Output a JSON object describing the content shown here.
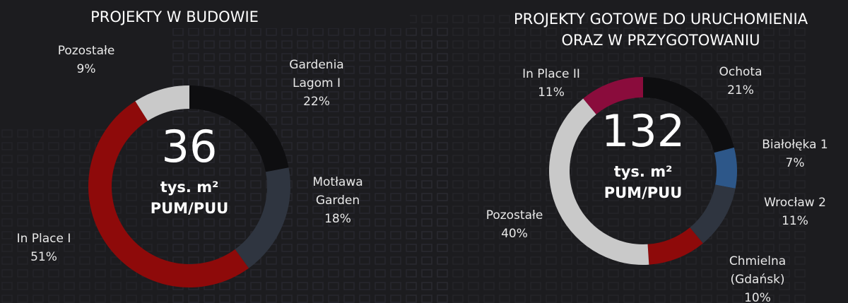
{
  "chart_data": [
    {
      "type": "pie",
      "donut": true,
      "title": [
        "PROJEKTY W BUDOWIE"
      ],
      "center": [
        "36",
        "tys. m²",
        "PUM/PUU"
      ],
      "categories": [
        [
          "Gardenia",
          "Lagom I"
        ],
        [
          "Motława",
          "Garden"
        ],
        [
          "In Place I"
        ],
        [
          "Pozostałe"
        ]
      ],
      "values": [
        22,
        18,
        51,
        9
      ],
      "value_labels": [
        "22%",
        "18%",
        "51%",
        "9%"
      ],
      "colors": [
        "#0e0e10",
        "#2f3540",
        "#8e0a0a",
        "#c9c9c9"
      ]
    },
    {
      "type": "pie",
      "donut": true,
      "title": [
        "PROJEKTY GOTOWE DO URUCHOMIENIA",
        "ORAZ W PRZYGOTOWANIU"
      ],
      "center": [
        "132",
        "tys. m²",
        "PUM/PUU"
      ],
      "categories": [
        [
          "Ochota"
        ],
        [
          "Białołęka 1"
        ],
        [
          "Wrocław 2"
        ],
        [
          "Chmielna",
          "(Gdańsk)"
        ],
        [
          "Pozostałe"
        ],
        [
          "In Place II"
        ]
      ],
      "values": [
        21,
        7,
        11,
        10,
        40,
        11
      ],
      "value_labels": [
        "21%",
        "7%",
        "11%",
        "10%",
        "40%",
        "11%"
      ],
      "colors": [
        "#0e0e10",
        "#2d5789",
        "#2f3540",
        "#8e0a0a",
        "#c9c9c9",
        "#8a0c3c"
      ]
    }
  ]
}
